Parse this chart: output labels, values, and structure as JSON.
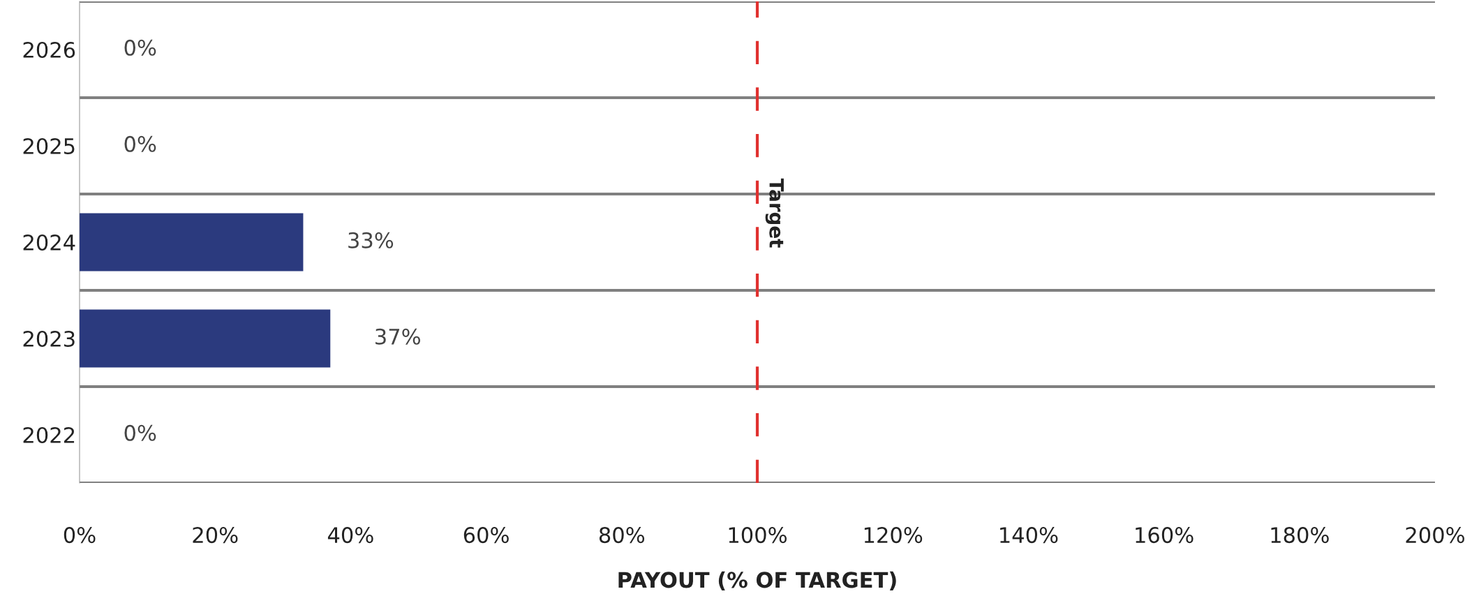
{
  "chart_data": {
    "type": "bar",
    "orientation": "horizontal",
    "xlabel": "PAYOUT (% OF TARGET)",
    "categories": [
      "2026",
      "2025",
      "2024",
      "2023",
      "2022"
    ],
    "values": [
      0,
      0,
      33,
      37,
      0
    ],
    "value_labels": [
      "0%",
      "0%",
      "33%",
      "37%",
      "0%"
    ],
    "color": "#2b3a7e",
    "xlim": [
      0,
      200
    ],
    "xticks": [
      {
        "value": 0,
        "label": "0%"
      },
      {
        "value": 20,
        "label": "20%"
      },
      {
        "value": 40,
        "label": "40%"
      },
      {
        "value": 60,
        "label": "60%"
      },
      {
        "value": 80,
        "label": "80%"
      },
      {
        "value": 100,
        "label": "100%"
      },
      {
        "value": 120,
        "label": "120%"
      },
      {
        "value": 140,
        "label": "140%"
      },
      {
        "value": 160,
        "label": "160%"
      },
      {
        "value": 180,
        "label": "180%"
      },
      {
        "value": 200,
        "label": "200%"
      }
    ],
    "ref_lines": [
      {
        "axis": "x",
        "value": 100,
        "label": "Target",
        "color": "#e0312f",
        "line_style": "dashed"
      }
    ],
    "grid": "y",
    "legend": false
  }
}
